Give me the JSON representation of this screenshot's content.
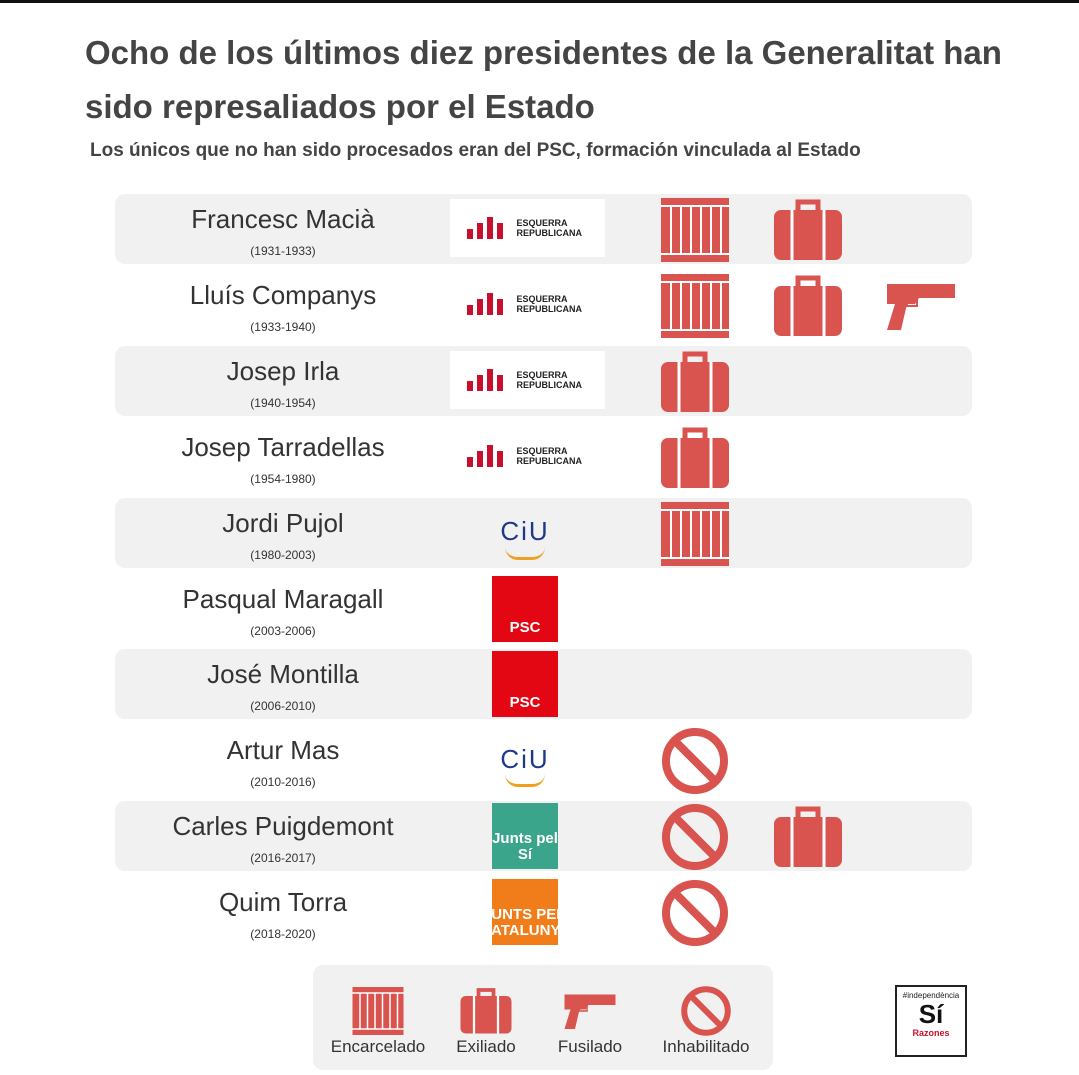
{
  "header": {
    "title": "Ocho de los últimos diez presidentes de la Generalitat han sido represaliados por el Estado",
    "subtitle": "Los únicos que no han sido procesados eran del PSC, formación vinculada al Estado"
  },
  "icon_color": "#d9534f",
  "parties": [
    {
      "label": "ESQUERRA REPUBLICANA",
      "shape": "wide",
      "color": "#222222",
      "background": "#ffffff",
      "accent": "#c8102e"
    },
    {
      "label": "CiU",
      "shape": "plain",
      "color": "#1d3a8a",
      "background": "#ffffff",
      "accent": "#f0a020"
    },
    {
      "label": "PSC",
      "shape": "square",
      "color": "#ffffff",
      "background": "#e30613",
      "accent": "#ffffff"
    },
    {
      "label": "Junts pel Sí",
      "shape": "square",
      "color": "#ffffff",
      "background": "#3aa58a",
      "accent": "#ffffff"
    },
    {
      "label": "JUNTS PER CATALUNYA",
      "shape": "square",
      "color": "#ffffff",
      "background": "#f07c1a",
      "accent": "#c8102e"
    }
  ],
  "rows": [
    {
      "name": "Francesc Macià",
      "years": "(1931-1933)",
      "party": "ESQUERRA REPUBLICANA",
      "icons": [
        "Encarcelado",
        "Exiliado"
      ]
    },
    {
      "name": "Lluís Companys",
      "years": "(1933-1940)",
      "party": "ESQUERRA REPUBLICANA",
      "icons": [
        "Encarcelado",
        "Exiliado",
        "Fusilado"
      ]
    },
    {
      "name": "Josep Irla",
      "years": "(1940-1954)",
      "party": "ESQUERRA REPUBLICANA",
      "icons": [
        "Exiliado"
      ]
    },
    {
      "name": "Josep Tarradellas",
      "years": "(1954-1980)",
      "party": "ESQUERRA REPUBLICANA",
      "icons": [
        "Exiliado"
      ]
    },
    {
      "name": "Jordi Pujol",
      "years": "(1980-2003)",
      "party": "CiU",
      "icons": [
        "Encarcelado"
      ]
    },
    {
      "name": "Pasqual Maragall",
      "years": "(2003-2006)",
      "party": "PSC",
      "icons": []
    },
    {
      "name": "José Montilla",
      "years": "(2006-2010)",
      "party": "PSC",
      "icons": []
    },
    {
      "name": "Artur Mas",
      "years": "(2010-2016)",
      "party": "CiU",
      "icons": [
        "Inhabilitado"
      ]
    },
    {
      "name": "Carles Puigdemont",
      "years": "(2016-2017)",
      "party": "Junts pel Sí",
      "icons": [
        "Inhabilitado",
        "Exiliado"
      ]
    },
    {
      "name": "Quim Torra",
      "years": "(2018-2020)",
      "party": "JUNTS PER CATALUNYA",
      "icons": [
        "Inhabilitado"
      ]
    }
  ],
  "legend": [
    {
      "label": "Encarcelado"
    },
    {
      "label": "Exiliado"
    },
    {
      "label": "Fusilado"
    },
    {
      "label": "Inhabilitado"
    }
  ],
  "badge": {
    "top": "#independència",
    "main": "Sí",
    "bottom": "Razones"
  }
}
